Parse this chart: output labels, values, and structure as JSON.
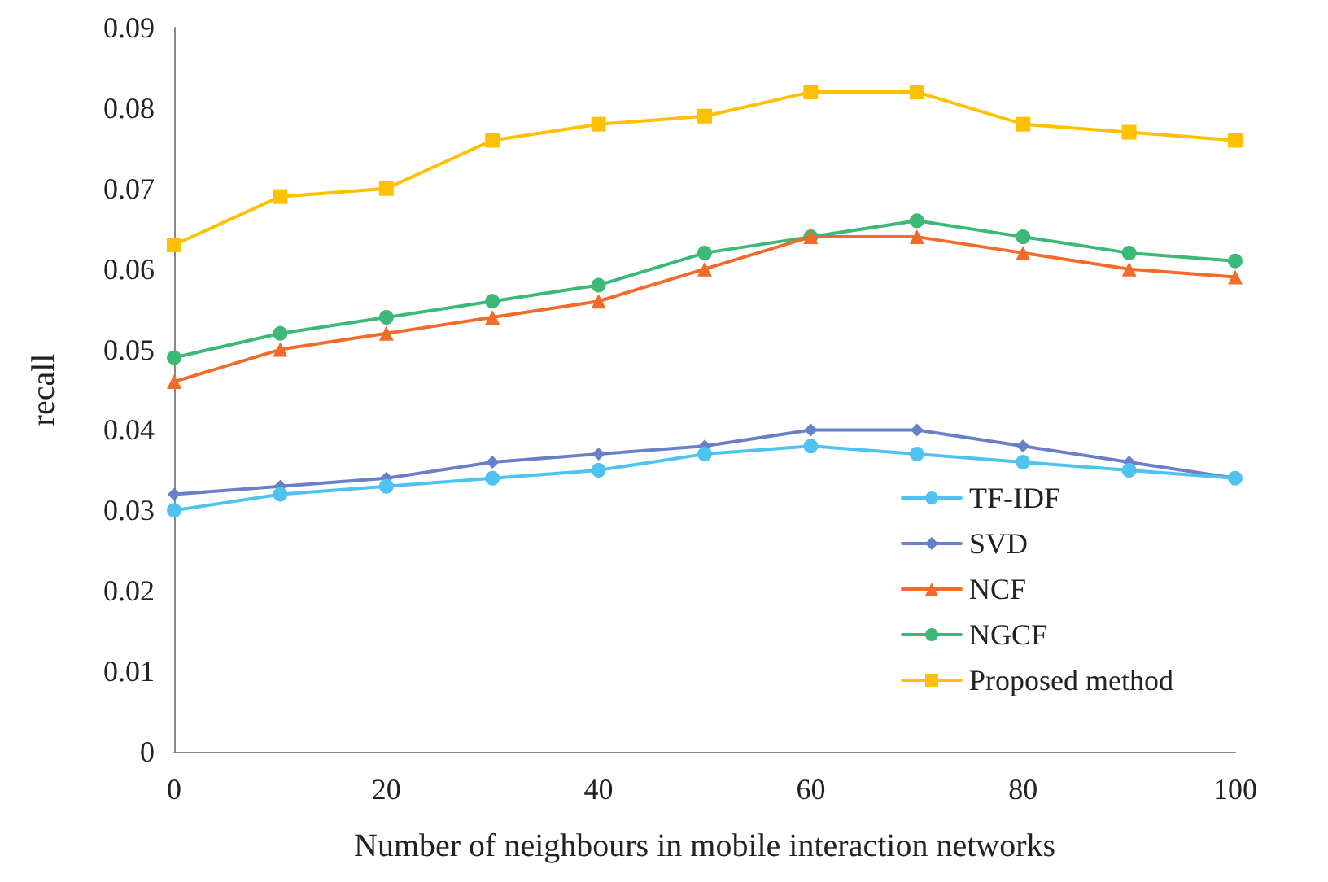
{
  "chart_data": {
    "type": "line",
    "xlabel": "Number of neighbours in mobile interaction networks",
    "ylabel": "recall",
    "x": [
      0,
      10,
      20,
      30,
      40,
      50,
      60,
      70,
      80,
      90,
      100
    ],
    "series": [
      {
        "name": "TF-IDF",
        "color": "#4fc3ef",
        "marker": "circle",
        "values": [
          0.03,
          0.032,
          0.033,
          0.034,
          0.035,
          0.037,
          0.038,
          0.037,
          0.036,
          0.035,
          0.034
        ]
      },
      {
        "name": "SVD",
        "color": "#6a7fc8",
        "marker": "diamond",
        "values": [
          0.032,
          0.033,
          0.034,
          0.036,
          0.037,
          0.038,
          0.04,
          0.04,
          0.038,
          0.036,
          0.034
        ]
      },
      {
        "name": "NCF",
        "color": "#f26b2a",
        "marker": "triangle",
        "values": [
          0.046,
          0.05,
          0.052,
          0.054,
          0.056,
          0.06,
          0.064,
          0.064,
          0.062,
          0.06,
          0.059
        ]
      },
      {
        "name": "NGCF",
        "color": "#3cb878",
        "marker": "circle",
        "values": [
          0.049,
          0.052,
          0.054,
          0.056,
          0.058,
          0.062,
          0.064,
          0.066,
          0.064,
          0.062,
          0.061
        ]
      },
      {
        "name": "Proposed method",
        "color": "#ffc000",
        "marker": "square",
        "values": [
          0.063,
          0.069,
          0.07,
          0.076,
          0.078,
          0.079,
          0.082,
          0.082,
          0.078,
          0.077,
          0.076
        ]
      }
    ],
    "xlim": [
      0,
      100
    ],
    "xticks": [
      0,
      20,
      40,
      60,
      80,
      100
    ],
    "ylim": [
      0,
      0.09
    ],
    "yticks": [
      0,
      0.01,
      0.02,
      0.03,
      0.04,
      0.05,
      0.06,
      0.07,
      0.08,
      0.09
    ],
    "grid": false,
    "legend": "bottom right",
    "line_style": "solid"
  }
}
